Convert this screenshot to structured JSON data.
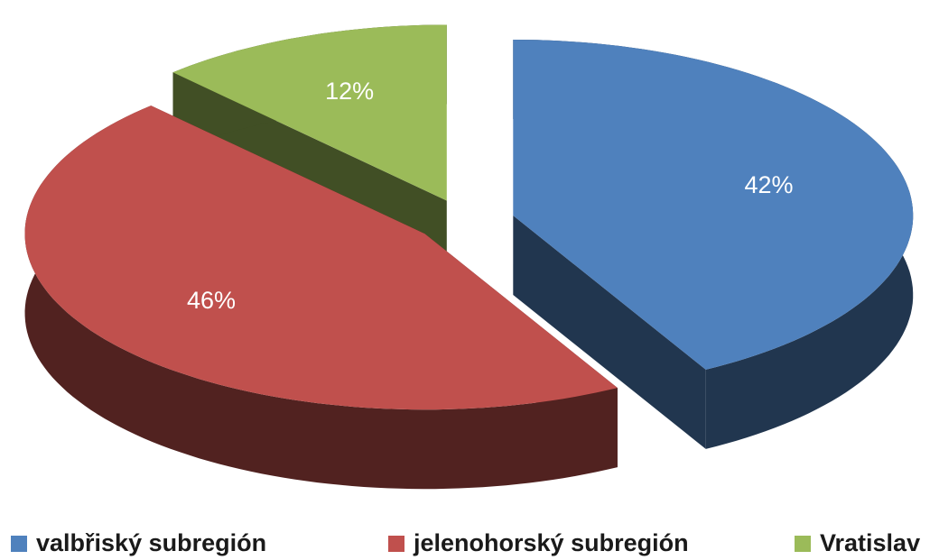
{
  "chart_data": {
    "type": "pie3d",
    "categories": [
      "valbřiský subregión",
      "jelenohorský subregión",
      "Vratislav"
    ],
    "values": [
      42,
      46,
      12
    ],
    "value_labels": [
      "42%",
      "46%",
      "12%"
    ],
    "colors": [
      "#4f81bd",
      "#c0504d",
      "#9bbb59"
    ],
    "legend": "bottom"
  }
}
